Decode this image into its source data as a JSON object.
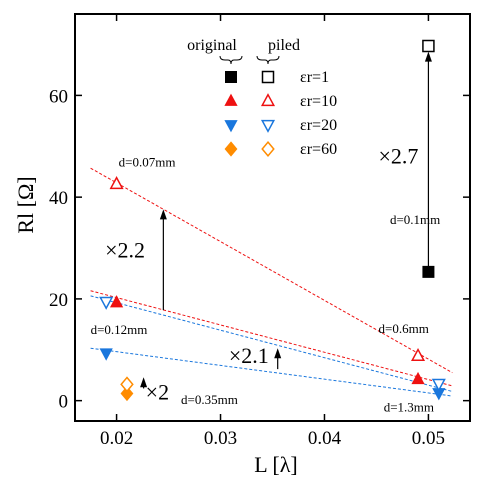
{
  "chart_data": {
    "type": "scatter",
    "xlabel": "L [λ]",
    "ylabel": "Rl [Ω]",
    "xlim": [
      0.016,
      0.054
    ],
    "ylim": [
      -4,
      76
    ],
    "xticks": [
      0.02,
      0.03,
      0.04,
      0.05
    ],
    "xtick_labels": [
      "0.02",
      "0.03",
      "0.04",
      "0.05"
    ],
    "yticks": [
      0,
      20,
      40,
      60
    ],
    "ytick_labels": [
      "0",
      "20",
      "40",
      "60"
    ],
    "grid": false,
    "legend_position": "top-center",
    "legend_headers": {
      "original": "original",
      "piled": "piled"
    },
    "series": [
      {
        "name": "εr=1",
        "color": "#000000",
        "marker": "square",
        "original": [
          {
            "x": 0.05,
            "y": 25.3
          }
        ],
        "piled": [
          {
            "x": 0.05,
            "y": 69.7
          }
        ]
      },
      {
        "name": "εr=10",
        "color": "#ee1111",
        "marker": "triangle-up",
        "original": [
          {
            "x": 0.02,
            "y": 19.3
          },
          {
            "x": 0.049,
            "y": 4.2
          }
        ],
        "piled": [
          {
            "x": 0.02,
            "y": 42.6
          },
          {
            "x": 0.049,
            "y": 8.8
          }
        ]
      },
      {
        "name": "εr=20",
        "color": "#1a77dd",
        "marker": "triangle-down",
        "original": [
          {
            "x": 0.019,
            "y": 9.3
          },
          {
            "x": 0.051,
            "y": 1.5
          }
        ],
        "piled": [
          {
            "x": 0.019,
            "y": 19.4
          },
          {
            "x": 0.051,
            "y": 3.3
          }
        ]
      },
      {
        "name": "εr=60",
        "color": "#ff8c00",
        "marker": "diamond",
        "original": [
          {
            "x": 0.021,
            "y": 1.4
          }
        ],
        "piled": [
          {
            "x": 0.021,
            "y": 3.2
          }
        ]
      }
    ],
    "fit_lines": [
      {
        "color": "#ee1111",
        "from": {
          "x": 0.0175,
          "y": 45.7
        },
        "to": {
          "x": 0.0523,
          "y": 5.5
        }
      },
      {
        "color": "#ee1111",
        "from": {
          "x": 0.0175,
          "y": 21.6
        },
        "to": {
          "x": 0.0523,
          "y": 2.9
        }
      },
      {
        "color": "#1a77dd",
        "from": {
          "x": 0.0175,
          "y": 20.6
        },
        "to": {
          "x": 0.0523,
          "y": 1.8
        }
      },
      {
        "color": "#1a77dd",
        "from": {
          "x": 0.0175,
          "y": 10.3
        },
        "to": {
          "x": 0.0523,
          "y": 0.9
        }
      }
    ],
    "arrows": [
      {
        "from": {
          "x": 0.0245,
          "y": 17.8
        },
        "to": {
          "x": 0.0245,
          "y": 37.6
        }
      },
      {
        "from": {
          "x": 0.0355,
          "y": 6.2
        },
        "to": {
          "x": 0.0355,
          "y": 10.3
        }
      },
      {
        "from": {
          "x": 0.05,
          "y": 25.3
        },
        "to": {
          "x": 0.05,
          "y": 68.6
        }
      },
      {
        "from": {
          "x": 0.0226,
          "y": 2.4
        },
        "to": {
          "x": 0.0226,
          "y": 4.6
        }
      }
    ],
    "annotations": [
      {
        "text": "d=0.07mm",
        "x": 0.0202,
        "y": 46.0,
        "size": "small"
      },
      {
        "text": "d=0.12mm",
        "x": 0.0175,
        "y": 13.1,
        "size": "small"
      },
      {
        "text": "d=0.35mm",
        "x": 0.0262,
        "y": -0.7,
        "size": "small"
      },
      {
        "text": "d=0.6mm",
        "x": 0.0452,
        "y": 13.3,
        "size": "small"
      },
      {
        "text": "d=1.3mm",
        "x": 0.0457,
        "y": -2.1,
        "size": "small"
      },
      {
        "text": "d=0.1mm",
        "x": 0.0463,
        "y": 34.7,
        "size": "small"
      },
      {
        "text": "×2.2",
        "x": 0.0189,
        "y": 28.1,
        "size": "big"
      },
      {
        "text": "×2.1",
        "x": 0.0308,
        "y": 7.4,
        "size": "big"
      },
      {
        "text": "×2",
        "x": 0.0228,
        "y": 0.2,
        "size": "big"
      },
      {
        "text": "×2.7",
        "x": 0.0452,
        "y": 46.6,
        "size": "big"
      }
    ]
  }
}
